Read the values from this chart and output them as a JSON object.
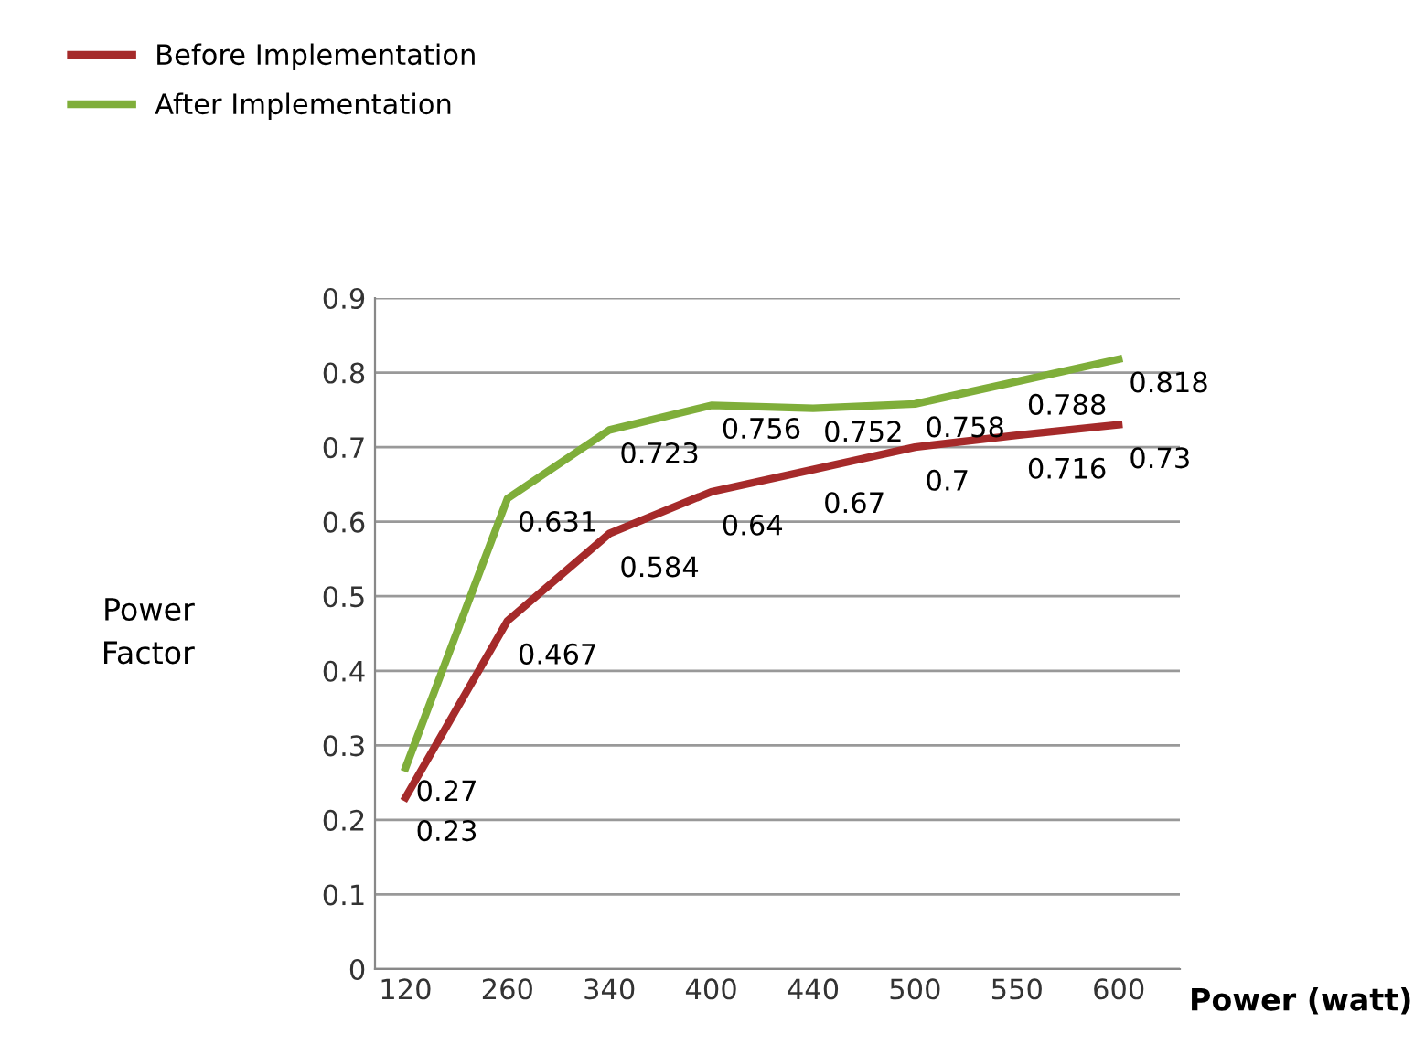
{
  "chart_data": {
    "type": "line",
    "xlabel": "Power (watt)",
    "ylabel": "Power\nFactor",
    "categories": [
      "120",
      "260",
      "340",
      "400",
      "440",
      "500",
      "550",
      "600"
    ],
    "series": [
      {
        "name": "Before Implementation",
        "color": "#a52a2a",
        "values": [
          0.23,
          0.467,
          0.584,
          0.64,
          0.67,
          0.7,
          0.716,
          0.73
        ]
      },
      {
        "name": "After Implementation",
        "color": "#7fae3a",
        "values": [
          0.27,
          0.631,
          0.723,
          0.756,
          0.752,
          0.758,
          0.788,
          0.818
        ]
      }
    ],
    "ylim": [
      0,
      0.9
    ],
    "yticks": [
      0,
      0.1,
      0.2,
      0.3,
      0.4,
      0.5,
      0.6,
      0.7,
      0.8,
      0.9
    ],
    "grid": "y",
    "legend": "top left",
    "data_labels": true,
    "marker": "none",
    "line_style": "solid"
  }
}
